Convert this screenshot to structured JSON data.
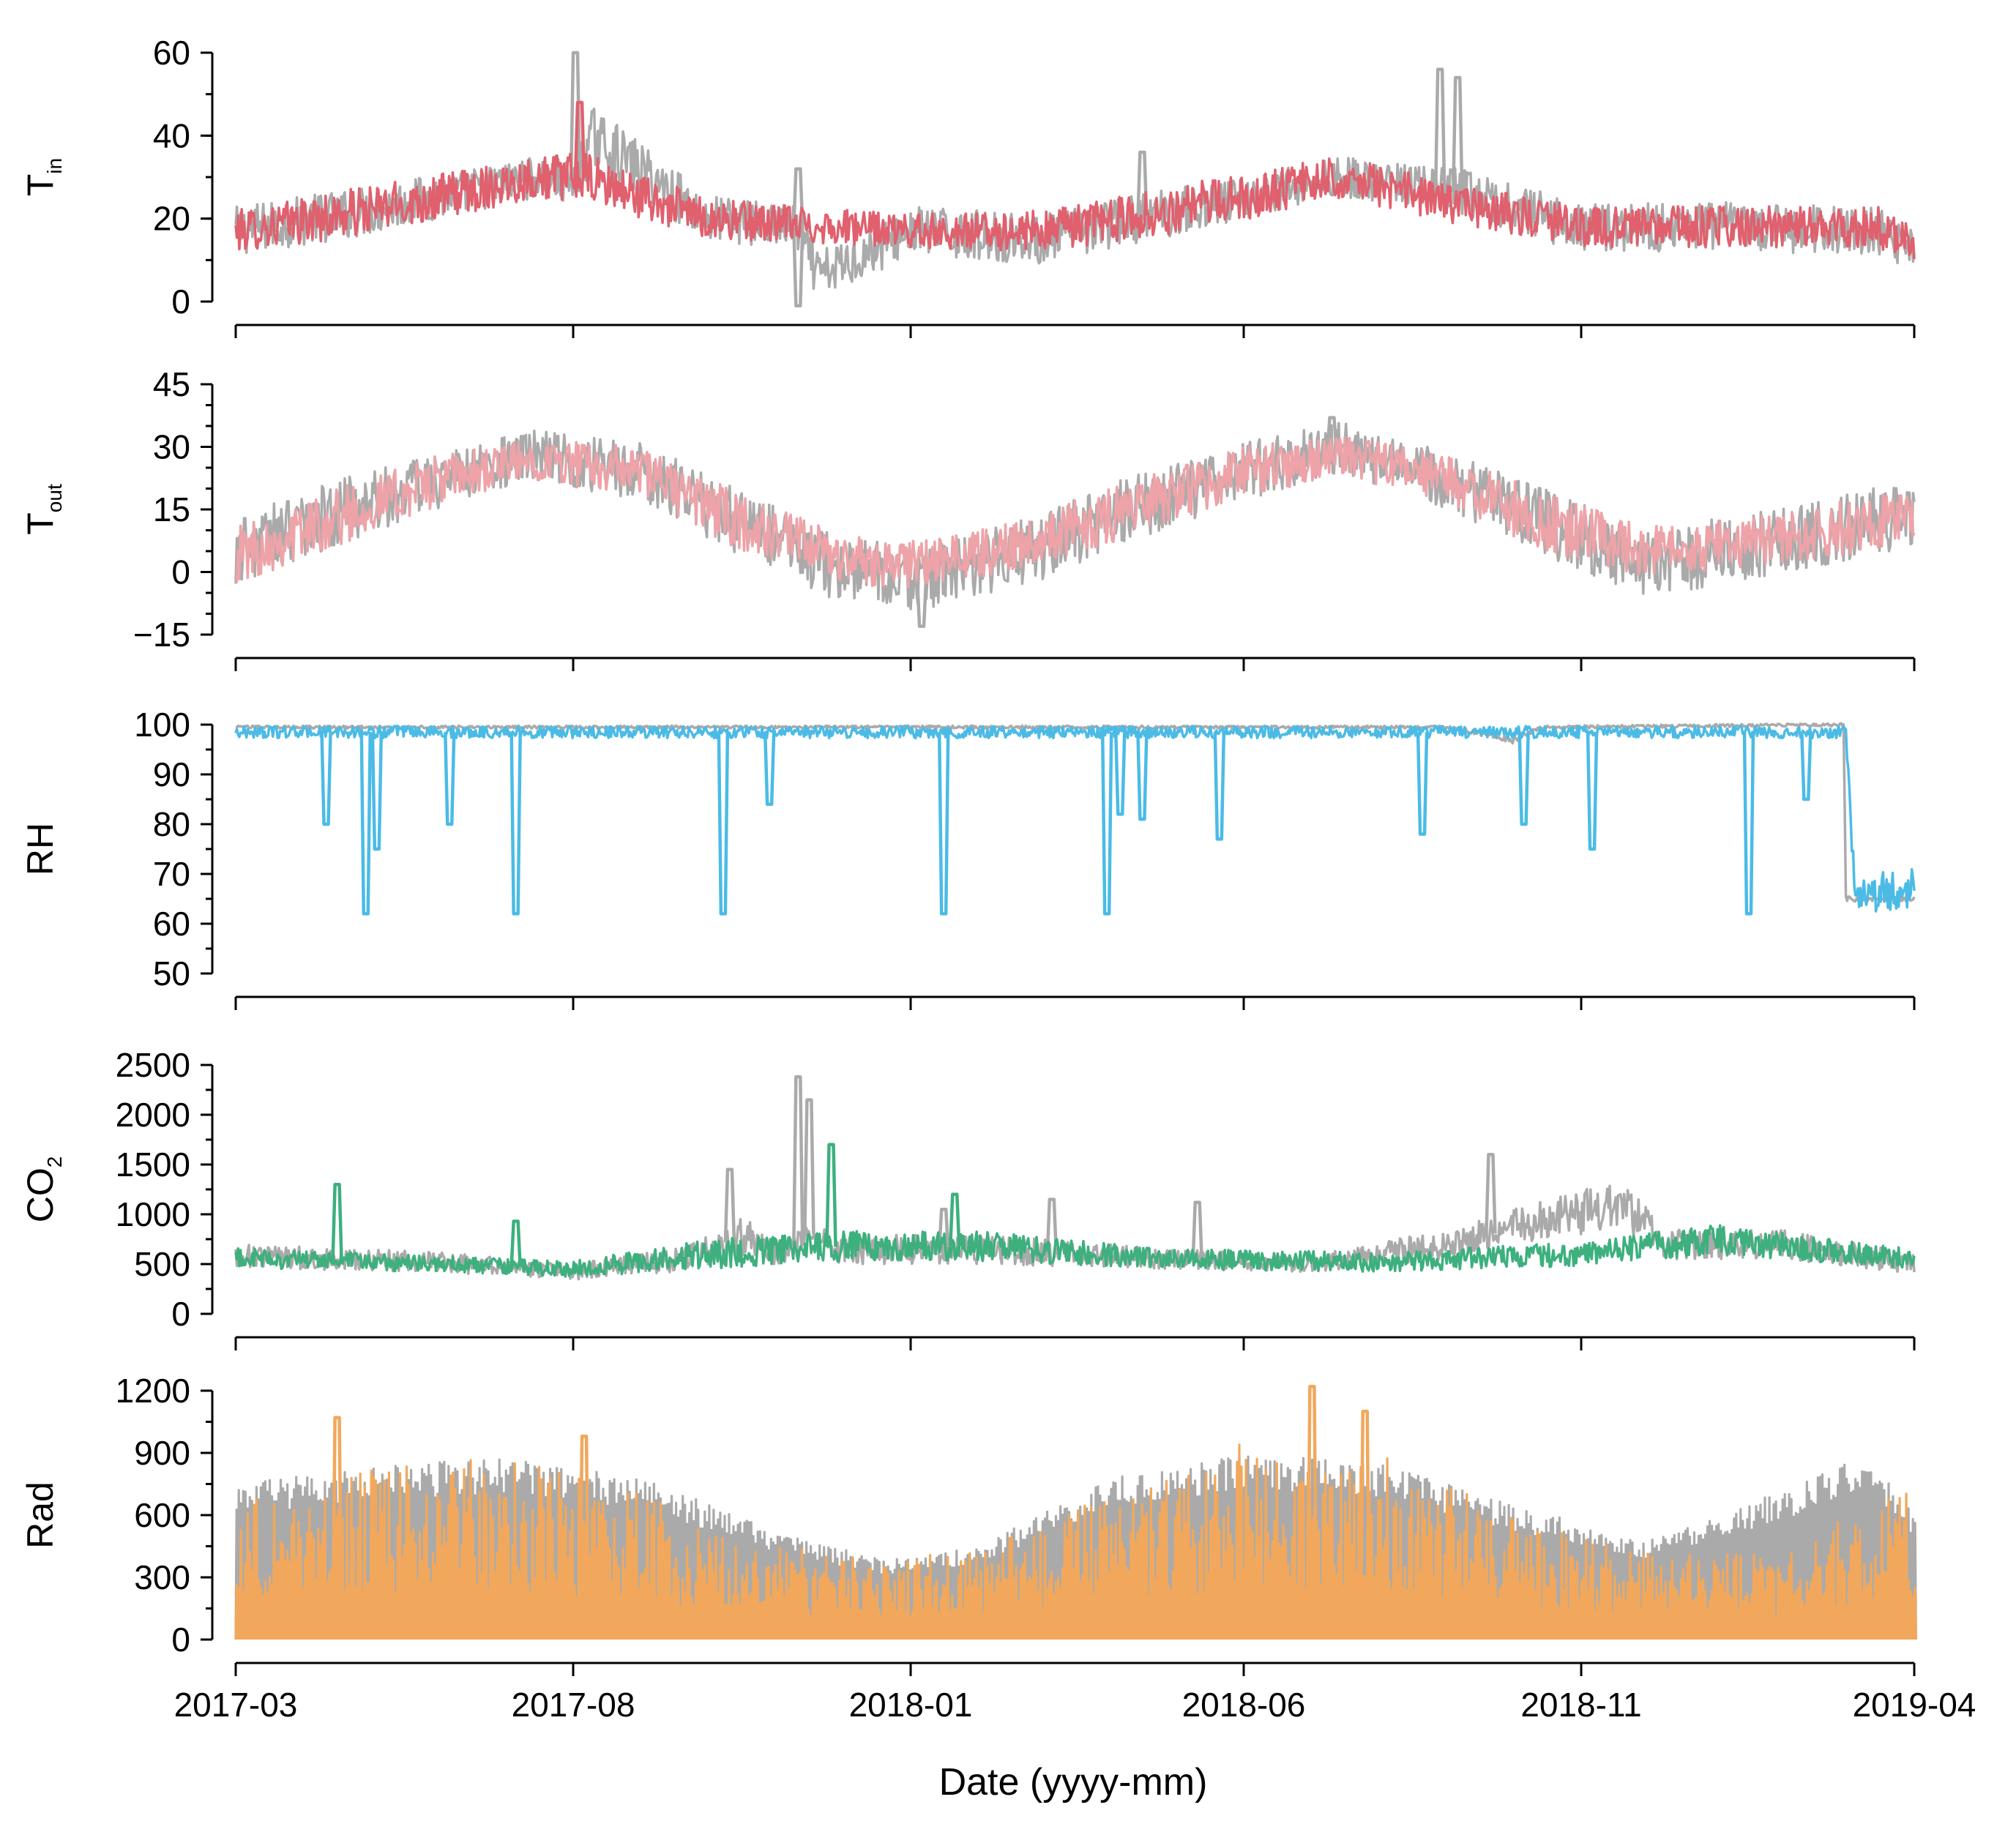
{
  "chart_data": {
    "type": "line",
    "shared_x": {
      "type": "date",
      "domain": [
        "2017-03",
        "2019-04"
      ],
      "ticks": [
        "2017-03",
        "2017-08",
        "2018-01",
        "2018-06",
        "2018-11",
        "2019-04"
      ],
      "label": "Date (yyyy-mm)"
    },
    "colors": {
      "reference": "#aaaaaa",
      "tin": "#e0606e",
      "tout": "#eda3a8",
      "rh": "#4bbbe6",
      "co2": "#3db07e",
      "rad": "#f1a85c"
    },
    "panels": [
      {
        "id": "tin",
        "ylabel": "T",
        "ylabel_sub": "in",
        "ylim": [
          0,
          60
        ],
        "yticks": [
          "0",
          "20",
          "40",
          "60"
        ],
        "yvalues": [
          0,
          20,
          40,
          60
        ],
        "minor_step": 10,
        "series": [
          {
            "color_key": "reference",
            "kind": "gray",
            "x": [
              "2017-03-01",
              "2017-05-01",
              "2017-07-15",
              "2017-08-01",
              "2017-08-10",
              "2017-10-01",
              "2017-11-10",
              "2017-11-20",
              "2018-01-01",
              "2018-03-01",
              "2018-05-01",
              "2018-06-01",
              "2018-07-15",
              "2018-08-15",
              "2018-09-10",
              "2018-09-25",
              "2018-11-01",
              "2019-01-01",
              "2019-03-15",
              "2019-04-01"
            ],
            "y": [
              17,
              22,
              30,
              28,
              40,
              20,
              18,
              6,
              17,
              15,
              22,
              25,
              30,
              28,
              26,
              23,
              18,
              18,
              17,
              12
            ],
            "amp": [
              6,
              6,
              5,
              6,
              7,
              6,
              5,
              6,
              6,
              6,
              6,
              5,
              5,
              5,
              6,
              6,
              6,
              6,
              6,
              5
            ],
            "spikes": [
              {
                "x": "2017-08-01",
                "y": 60
              },
              {
                "x": "2017-11-10",
                "y": 32
              },
              {
                "x": "2017-11-10",
                "y": -1
              },
              {
                "x": "2018-04-15",
                "y": 36
              },
              {
                "x": "2018-08-28",
                "y": 56
              },
              {
                "x": "2018-09-05",
                "y": 54
              }
            ]
          },
          {
            "color_key": "tin",
            "kind": "color",
            "x": [
              "2017-03-01",
              "2017-05-01",
              "2017-07-15",
              "2017-08-05",
              "2017-10-01",
              "2018-01-01",
              "2018-03-01",
              "2018-05-01",
              "2018-07-15",
              "2018-09-01",
              "2018-11-01",
              "2019-01-01",
              "2019-03-15",
              "2019-04-01"
            ],
            "y": [
              17,
              22,
              30,
              30,
              20,
              17,
              17,
              22,
              30,
              24,
              18,
              18,
              18,
              14
            ],
            "amp": [
              5,
              6,
              5,
              6,
              5,
              4,
              5,
              6,
              5,
              5,
              5,
              5,
              5,
              4
            ],
            "spikes": [
              {
                "x": "2017-08-03",
                "y": 48
              }
            ]
          }
        ]
      },
      {
        "id": "tout",
        "ylabel": "T",
        "ylabel_sub": "out",
        "ylim": [
          -15,
          45
        ],
        "yticks": [
          "−15",
          "0",
          "15",
          "30",
          "45"
        ],
        "yvalues": [
          -15,
          0,
          15,
          30,
          45
        ],
        "minor_step": 5,
        "series": [
          {
            "color_key": "reference",
            "kind": "gray",
            "x": [
              "2017-03-01",
              "2017-04-15",
              "2017-06-01",
              "2017-07-15",
              "2017-09-01",
              "2017-10-15",
              "2017-12-01",
              "2018-01-10",
              "2018-03-01",
              "2018-04-15",
              "2018-06-01",
              "2018-07-15",
              "2018-09-01",
              "2018-10-15",
              "2018-12-01",
              "2019-01-15",
              "2019-04-01"
            ],
            "y": [
              5,
              14,
              22,
              28,
              24,
              12,
              0,
              -2,
              6,
              16,
              24,
              30,
              22,
              12,
              2,
              6,
              14
            ],
            "amp": [
              8,
              8,
              7,
              6,
              7,
              8,
              8,
              8,
              8,
              8,
              7,
              6,
              7,
              8,
              8,
              8,
              8
            ],
            "spikes": [
              {
                "x": "2018-01-05",
                "y": -13
              },
              {
                "x": "2018-07-10",
                "y": 37
              }
            ]
          },
          {
            "color_key": "tout",
            "kind": "color",
            "x": [
              "2017-03-01",
              "2017-04-15",
              "2017-06-01",
              "2017-07-15",
              "2017-09-01",
              "2017-10-15",
              "2017-12-01",
              "2018-01-10",
              "2018-03-01",
              "2018-04-15",
              "2018-06-01",
              "2018-07-15",
              "2018-09-01",
              "2018-10-15",
              "2018-12-01",
              "2019-01-15",
              "2019-04-01"
            ],
            "y": [
              4,
              13,
              22,
              27,
              24,
              12,
              3,
              2,
              8,
              16,
              24,
              28,
              22,
              12,
              5,
              7,
              13
            ],
            "amp": [
              7,
              7,
              6,
              5,
              6,
              7,
              6,
              6,
              6,
              7,
              6,
              5,
              6,
              7,
              6,
              6,
              7
            ],
            "spikes": []
          }
        ]
      },
      {
        "id": "rh",
        "ylabel": "RH",
        "ylabel_sub": "",
        "ylim": [
          50,
          100
        ],
        "yticks": [
          "50",
          "60",
          "70",
          "80",
          "90",
          "100"
        ],
        "yvalues": [
          50,
          60,
          70,
          80,
          90,
          100
        ],
        "minor_step": 5,
        "series": [
          {
            "color_key": "reference",
            "kind": "gray",
            "x": [
              "2017-03-01",
              "2018-09-01",
              "2018-10-01",
              "2018-10-15",
              "2019-02-28",
              "2019-03-01",
              "2019-04-01"
            ],
            "y": [
              99.5,
              99.5,
              97,
              99.5,
              100,
              65,
              65
            ],
            "amp": [
              0.3,
              0.3,
              0.8,
              0.3,
              0.3,
              0.5,
              0.5
            ],
            "spikes": []
          },
          {
            "color_key": "rh",
            "kind": "color",
            "x": [
              "2017-03-01",
              "2019-03-01",
              "2019-03-05",
              "2019-04-01"
            ],
            "y": [
              98.5,
              98.5,
              66,
              67
            ],
            "amp": [
              1.2,
              1.2,
              4,
              4
            ],
            "spikes": [
              {
                "x": "2017-04-10",
                "y": 80
              },
              {
                "x": "2017-04-28",
                "y": 62
              },
              {
                "x": "2017-05-03",
                "y": 75
              },
              {
                "x": "2017-06-05",
                "y": 80
              },
              {
                "x": "2017-07-05",
                "y": 62
              },
              {
                "x": "2017-10-07",
                "y": 62
              },
              {
                "x": "2017-10-28",
                "y": 84
              },
              {
                "x": "2018-01-15",
                "y": 62
              },
              {
                "x": "2018-03-30",
                "y": 62
              },
              {
                "x": "2018-04-05",
                "y": 82
              },
              {
                "x": "2018-04-15",
                "y": 81
              },
              {
                "x": "2018-05-20",
                "y": 77
              },
              {
                "x": "2018-08-20",
                "y": 78
              },
              {
                "x": "2018-10-05",
                "y": 80
              },
              {
                "x": "2018-11-05",
                "y": 75
              },
              {
                "x": "2019-01-15",
                "y": 62
              },
              {
                "x": "2019-02-10",
                "y": 85
              }
            ]
          }
        ]
      },
      {
        "id": "co2",
        "ylabel": "CO",
        "ylabel_sub": "2",
        "ylim": [
          0,
          2500
        ],
        "yticks": [
          "0",
          "500",
          "1000",
          "1500",
          "2000",
          "2500"
        ],
        "yvalues": [
          0,
          500,
          1000,
          1500,
          2000,
          2500
        ],
        "minor_step": 250,
        "series": [
          {
            "color_key": "reference",
            "kind": "gray",
            "x": [
              "2017-03-01",
              "2017-06-01",
              "2017-08-01",
              "2017-09-20",
              "2017-10-20",
              "2017-11-05",
              "2017-11-15",
              "2017-12-01",
              "2018-02-01",
              "2018-05-01",
              "2018-07-01",
              "2018-09-01",
              "2018-10-15",
              "2018-11-20",
              "2018-12-10",
              "2019-02-01",
              "2019-04-01"
            ],
            "y": [
              580,
              520,
              420,
              550,
              800,
              600,
              800,
              650,
              650,
              550,
              500,
              700,
              950,
              1100,
              700,
              700,
              500
            ],
            "amp": [
              120,
              100,
              80,
              120,
              200,
              150,
              150,
              150,
              150,
              100,
              80,
              150,
              200,
              250,
              150,
              150,
              100
            ],
            "spikes": [
              {
                "x": "2017-10-10",
                "y": 1450
              },
              {
                "x": "2017-11-10",
                "y": 2380
              },
              {
                "x": "2017-11-15",
                "y": 2150
              },
              {
                "x": "2018-01-15",
                "y": 1050
              },
              {
                "x": "2018-03-05",
                "y": 1150
              },
              {
                "x": "2018-05-10",
                "y": 1120
              },
              {
                "x": "2018-09-20",
                "y": 1600
              }
            ]
          },
          {
            "color_key": "co2",
            "kind": "color",
            "x": [
              "2017-03-01",
              "2017-06-01",
              "2017-08-01",
              "2017-10-01",
              "2017-12-01",
              "2018-02-01",
              "2018-05-01",
              "2018-08-01",
              "2018-11-01",
              "2019-01-01",
              "2019-04-01"
            ],
            "y": [
              560,
              500,
              450,
              600,
              680,
              680,
              550,
              520,
              600,
              750,
              550
            ],
            "amp": [
              100,
              80,
              80,
              150,
              150,
              150,
              100,
              100,
              120,
              150,
              100
            ],
            "spikes": [
              {
                "x": "2017-04-15",
                "y": 1300
              },
              {
                "x": "2017-07-05",
                "y": 930
              },
              {
                "x": "2017-11-25",
                "y": 1700
              },
              {
                "x": "2018-01-20",
                "y": 1200
              }
            ]
          }
        ]
      },
      {
        "id": "rad",
        "ylabel": "Rad",
        "ylabel_sub": "",
        "ylim": [
          0,
          1200
        ],
        "yticks": [
          "0",
          "300",
          "600",
          "900",
          "1200"
        ],
        "yvalues": [
          0,
          300,
          600,
          900,
          1200
        ],
        "minor_step": 150,
        "series": [
          {
            "color_key": "reference",
            "kind": "rad-gray",
            "x": [
              "2017-03-01",
              "2017-05-01",
              "2017-07-01",
              "2017-09-01",
              "2017-11-01",
              "2017-12-20",
              "2018-02-01",
              "2018-04-01",
              "2018-06-01",
              "2018-08-01",
              "2018-10-01",
              "2018-12-01",
              "2019-02-01",
              "2019-03-10",
              "2019-04-01"
            ],
            "y": [
              750,
              830,
              880,
              780,
              520,
              380,
              450,
              780,
              900,
              850,
              650,
              480,
              720,
              900,
              600
            ],
            "amp": [
              0,
              0,
              0,
              0,
              0,
              0,
              0,
              0,
              0,
              0,
              0,
              0,
              0,
              0,
              0
            ],
            "spikes": []
          },
          {
            "color_key": "rad",
            "kind": "rad-color",
            "x": [
              "2017-03-01",
              "2017-05-01",
              "2017-07-01",
              "2017-09-01",
              "2017-11-01",
              "2017-12-20",
              "2018-02-01",
              "2018-04-01",
              "2018-06-01",
              "2018-08-01",
              "2018-10-01",
              "2018-12-01",
              "2019-02-01",
              "2019-04-01"
            ],
            "y": [
              680,
              820,
              900,
              700,
              450,
              380,
              450,
              700,
              950,
              950,
              600,
              420,
              420,
              800
            ],
            "amp": [
              0,
              0,
              0,
              0,
              0,
              0,
              0,
              0,
              0,
              0,
              0,
              0,
              0,
              0
            ],
            "spikes": [
              {
                "x": "2017-04-15",
                "y": 1070
              },
              {
                "x": "2017-08-05",
                "y": 980
              },
              {
                "x": "2018-07-01",
                "y": 1220
              },
              {
                "x": "2018-07-25",
                "y": 1100
              }
            ]
          }
        ]
      }
    ]
  }
}
